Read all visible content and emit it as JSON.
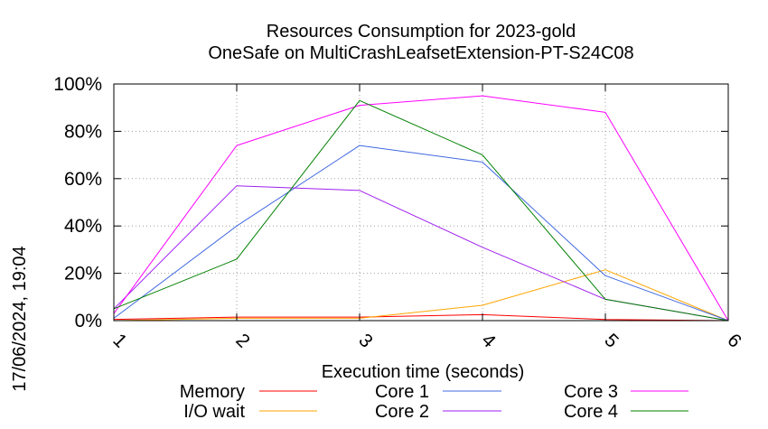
{
  "chart_data": {
    "type": "line",
    "title": "Resources Consumption for 2023-gold",
    "subtitle": "OneSafe on MultiCrashLeafsetExtension-PT-S24C08",
    "xlabel": "Execution time (seconds)",
    "ylabel": "",
    "timestamp": "17/06/2024, 19:04",
    "x": [
      1,
      2,
      3,
      4,
      5,
      6
    ],
    "xlim": [
      1,
      6
    ],
    "ylim": [
      0,
      100
    ],
    "x_ticks": [
      "1",
      "2",
      "3",
      "4",
      "5",
      "6"
    ],
    "y_ticks": [
      {
        "value": 0,
        "label": "0%"
      },
      {
        "value": 20,
        "label": "20%"
      },
      {
        "value": 40,
        "label": "40%"
      },
      {
        "value": 60,
        "label": "60%"
      },
      {
        "value": 80,
        "label": "80%"
      },
      {
        "value": 100,
        "label": "100%"
      }
    ],
    "grid": true,
    "legend_position": "bottom",
    "series": [
      {
        "name": "Memory",
        "color": "#ff0000",
        "values": [
          0.5,
          1.5,
          1.5,
          2.5,
          0.5,
          0
        ]
      },
      {
        "name": "I/O wait",
        "color": "#ffa500",
        "values": [
          0,
          1,
          1,
          6.5,
          21.5,
          0
        ]
      },
      {
        "name": "Core 1",
        "color": "#4169e1",
        "values": [
          1,
          40,
          74,
          67,
          19,
          0
        ]
      },
      {
        "name": "Core 2",
        "color": "#a020f0",
        "values": [
          5,
          57,
          55,
          31,
          9,
          0
        ]
      },
      {
        "name": "Core 3",
        "color": "#ff00ff",
        "values": [
          3,
          74,
          91,
          95,
          88,
          0
        ]
      },
      {
        "name": "Core 4",
        "color": "#008000",
        "values": [
          5,
          26,
          93,
          70,
          9,
          0
        ]
      }
    ]
  }
}
